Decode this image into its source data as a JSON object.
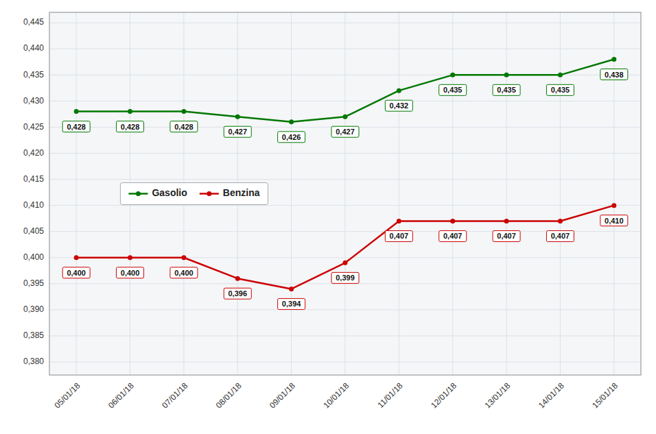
{
  "chart_data": {
    "type": "line",
    "categories": [
      "05/01/18",
      "06/01/18",
      "07/01/18",
      "08/01/18",
      "09/01/18",
      "10/01/18",
      "11/01/18",
      "12/01/18",
      "13/01/18",
      "14/01/18",
      "15/01/18"
    ],
    "series": [
      {
        "name": "Gasolio",
        "color": "#007700",
        "marker": "circle",
        "values": [
          0.428,
          0.428,
          0.428,
          0.427,
          0.426,
          0.427,
          0.432,
          0.435,
          0.435,
          0.435,
          0.438
        ],
        "value_labels": [
          "0,428",
          "0,428",
          "0,428",
          "0,427",
          "0,426",
          "0,427",
          "0,432",
          "0,435",
          "0,435",
          "0,435",
          "0,438"
        ]
      },
      {
        "name": "Benzina",
        "color": "#cc0000",
        "marker": "circle",
        "values": [
          0.4,
          0.4,
          0.4,
          0.396,
          0.394,
          0.399,
          0.407,
          0.407,
          0.407,
          0.407,
          0.41
        ],
        "value_labels": [
          "0,400",
          "0,400",
          "0,400",
          "0,396",
          "0,394",
          "0,399",
          "0,407",
          "0,407",
          "0,407",
          "0,407",
          "0,410"
        ]
      }
    ],
    "ylim": [
      0.3775,
      0.447
    ],
    "yticks": [
      {
        "value": 0.38,
        "label": "0,380"
      },
      {
        "value": 0.385,
        "label": "0,385"
      },
      {
        "value": 0.39,
        "label": "0,390"
      },
      {
        "value": 0.395,
        "label": "0,395"
      },
      {
        "value": 0.4,
        "label": "0,400"
      },
      {
        "value": 0.405,
        "label": "0,405"
      },
      {
        "value": 0.41,
        "label": "0,410"
      },
      {
        "value": 0.415,
        "label": "0,415"
      },
      {
        "value": 0.42,
        "label": "0,420"
      },
      {
        "value": 0.425,
        "label": "0,425"
      },
      {
        "value": 0.43,
        "label": "0,430"
      },
      {
        "value": 0.435,
        "label": "0,435"
      },
      {
        "value": 0.44,
        "label": "0,440"
      },
      {
        "value": 0.445,
        "label": "0,445"
      }
    ],
    "grid": true,
    "legend": "left",
    "data_labels": true
  }
}
